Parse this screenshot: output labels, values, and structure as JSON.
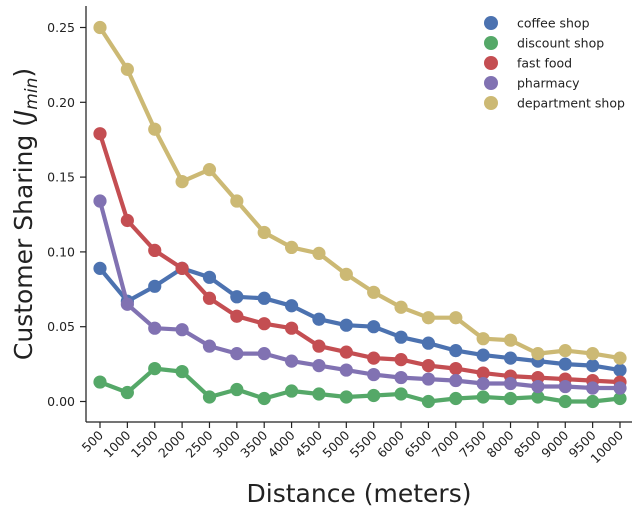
{
  "chart_data": {
    "type": "line",
    "xlabel": "Distance (meters)",
    "ylabel": {
      "prefix": "Customer Sharing (",
      "symbol": "J",
      "subscript": "min",
      "suffix": ")"
    },
    "categories": [
      "500",
      "1000",
      "1500",
      "2000",
      "2500",
      "3000",
      "3500",
      "4000",
      "4500",
      "5000",
      "5500",
      "6000",
      "6500",
      "7000",
      "7500",
      "8000",
      "8500",
      "9000",
      "9500",
      "10000"
    ],
    "ylim": [
      -0.013,
      0.265
    ],
    "yticks": [
      0.0,
      0.05,
      0.1,
      0.15,
      0.2,
      0.25
    ],
    "ytick_labels": [
      "0.00",
      "0.05",
      "0.10",
      "0.15",
      "0.20",
      "0.25"
    ],
    "grid": false,
    "legend_position": "top-right",
    "series": [
      {
        "name": "coffee shop",
        "color": "#4c72b0",
        "values": [
          0.089,
          0.067,
          0.077,
          0.089,
          0.083,
          0.07,
          0.069,
          0.064,
          0.055,
          0.051,
          0.05,
          0.043,
          0.039,
          0.034,
          0.031,
          0.029,
          0.027,
          0.025,
          0.024,
          0.021
        ]
      },
      {
        "name": "discount shop",
        "color": "#55a868",
        "values": [
          0.013,
          0.006,
          0.022,
          0.02,
          0.003,
          0.008,
          0.002,
          0.007,
          0.005,
          0.003,
          0.004,
          0.005,
          0.0,
          0.002,
          0.003,
          0.002,
          0.003,
          0.0,
          0.0,
          0.002
        ]
      },
      {
        "name": "fast food",
        "color": "#c44e52",
        "values": [
          0.179,
          0.121,
          0.101,
          0.089,
          0.069,
          0.057,
          0.052,
          0.049,
          0.037,
          0.033,
          0.029,
          0.028,
          0.024,
          0.022,
          0.019,
          0.017,
          0.016,
          0.015,
          0.014,
          0.013
        ]
      },
      {
        "name": "pharmacy",
        "color": "#8172b2",
        "values": [
          0.134,
          0.065,
          0.049,
          0.048,
          0.037,
          0.032,
          0.032,
          0.027,
          0.024,
          0.021,
          0.018,
          0.016,
          0.015,
          0.014,
          0.012,
          0.012,
          0.01,
          0.01,
          0.009,
          0.009
        ]
      },
      {
        "name": "department shop",
        "color": "#ccb974",
        "values": [
          0.25,
          0.222,
          0.182,
          0.147,
          0.155,
          0.134,
          0.113,
          0.103,
          0.099,
          0.085,
          0.073,
          0.063,
          0.056,
          0.056,
          0.042,
          0.041,
          0.032,
          0.034,
          0.032,
          0.029
        ]
      }
    ]
  }
}
